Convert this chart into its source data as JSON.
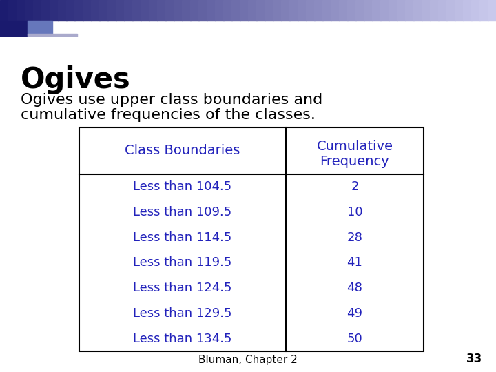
{
  "title": "Ogives",
  "subtitle_line1": "Ogives use upper class boundaries and",
  "subtitle_line2": "cumulative frequencies of the classes.",
  "title_color": "#000000",
  "subtitle_color": "#000000",
  "table_header_col1": "Class Boundaries",
  "table_header_col2_line1": "Cumulative",
  "table_header_col2_line2": "Frequency",
  "header_text_color": "#2222bb",
  "data_text_color": "#2222bb",
  "class_boundaries": [
    "Less than 104.5",
    "Less than 109.5",
    "Less than 114.5",
    "Less than 119.5",
    "Less than 124.5",
    "Less than 129.5",
    "Less than 134.5"
  ],
  "cumulative_frequencies": [
    "2",
    "10",
    "28",
    "41",
    "48",
    "49",
    "50"
  ],
  "footer_text": "Bluman, Chapter 2",
  "footer_page": "33",
  "footer_color": "#000000",
  "background_color": "#ffffff",
  "table_border_color": "#000000",
  "deco_bar_color": "#2b2b8e",
  "deco_bar2_color": "#5555aa",
  "deco_sq1_color": "#1a1a6e",
  "deco_sq2_color": "#7777bb",
  "deco_sq3_color": "#aaaacc",
  "deco_gradient_start": "#1c1c70",
  "deco_gradient_end": "#ccccdd"
}
